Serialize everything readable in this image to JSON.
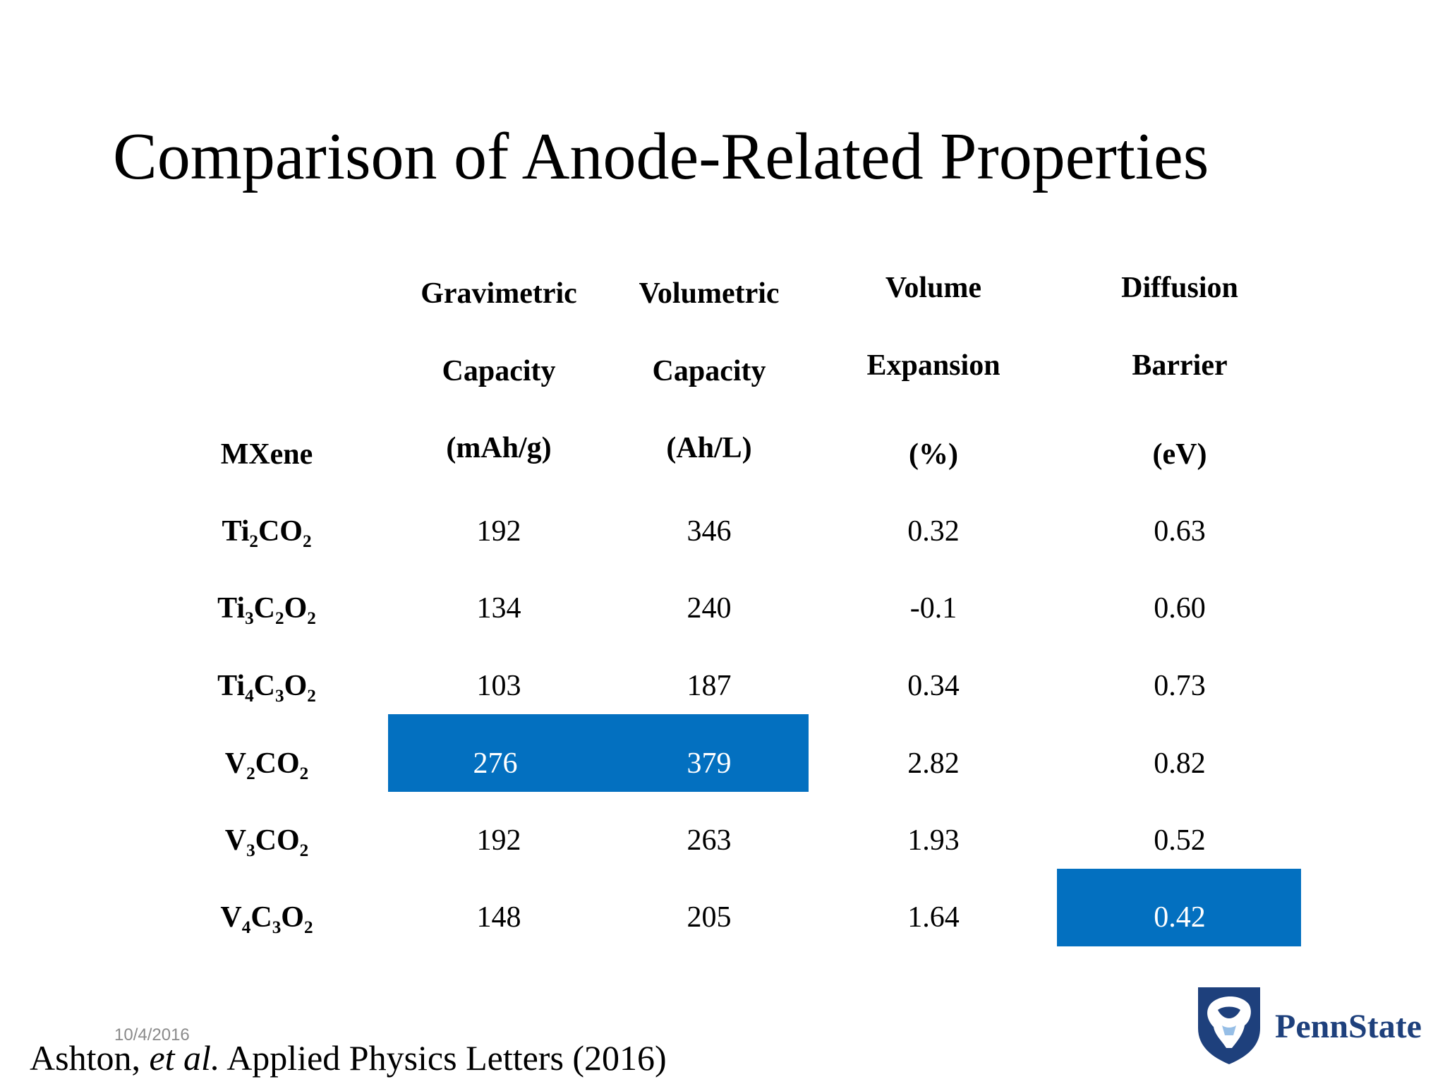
{
  "slide": {
    "title": "Comparison of Anode-Related Properties",
    "date": "10/4/2016",
    "citation": {
      "authors": "Ashton, ",
      "etal": "et al.",
      "journal": " Applied Physics Letters (2016)"
    },
    "logo": {
      "text": "PennState",
      "icon": "nittany-lion-shield-icon",
      "color": "#1E407C"
    }
  },
  "table": {
    "headers": {
      "mxene": "MXene",
      "grav": [
        "Gravimetric",
        "Capacity",
        "(mAh/g)"
      ],
      "vol": [
        "Volumetric",
        "Capacity",
        "(Ah/L)"
      ],
      "exp": [
        "Volume",
        "Expansion",
        "(%)"
      ],
      "diff": [
        "Diffusion",
        "Barrier",
        "(eV)"
      ]
    },
    "rows": [
      {
        "mxene": [
          "Ti",
          "2",
          "CO",
          "2"
        ],
        "grav": "192",
        "vol": "346",
        "exp": "0.32",
        "diff": "0.63"
      },
      {
        "mxene": [
          "Ti",
          "3",
          "C",
          "2",
          "O",
          "2"
        ],
        "grav": "134",
        "vol": "240",
        "exp": "-0.1",
        "diff": "0.60"
      },
      {
        "mxene": [
          "Ti",
          "4",
          "C",
          "3",
          "O",
          "2"
        ],
        "grav": "103",
        "vol": "187",
        "exp": "0.34",
        "diff": "0.73"
      },
      {
        "mxene": [
          "V",
          "2",
          "CO",
          "2"
        ],
        "grav": "276",
        "vol": "379",
        "exp": "2.82",
        "diff": "0.82"
      },
      {
        "mxene": [
          "V",
          "3",
          "CO",
          "2"
        ],
        "grav": "192",
        "vol": "263",
        "exp": "1.93",
        "diff": "0.52"
      },
      {
        "mxene": [
          "V",
          "4",
          "C",
          "3",
          "O",
          "2"
        ],
        "grav": "148",
        "vol": "205",
        "exp": "1.64",
        "diff": "0.42"
      }
    ],
    "highlight_color": "#0370C0"
  }
}
